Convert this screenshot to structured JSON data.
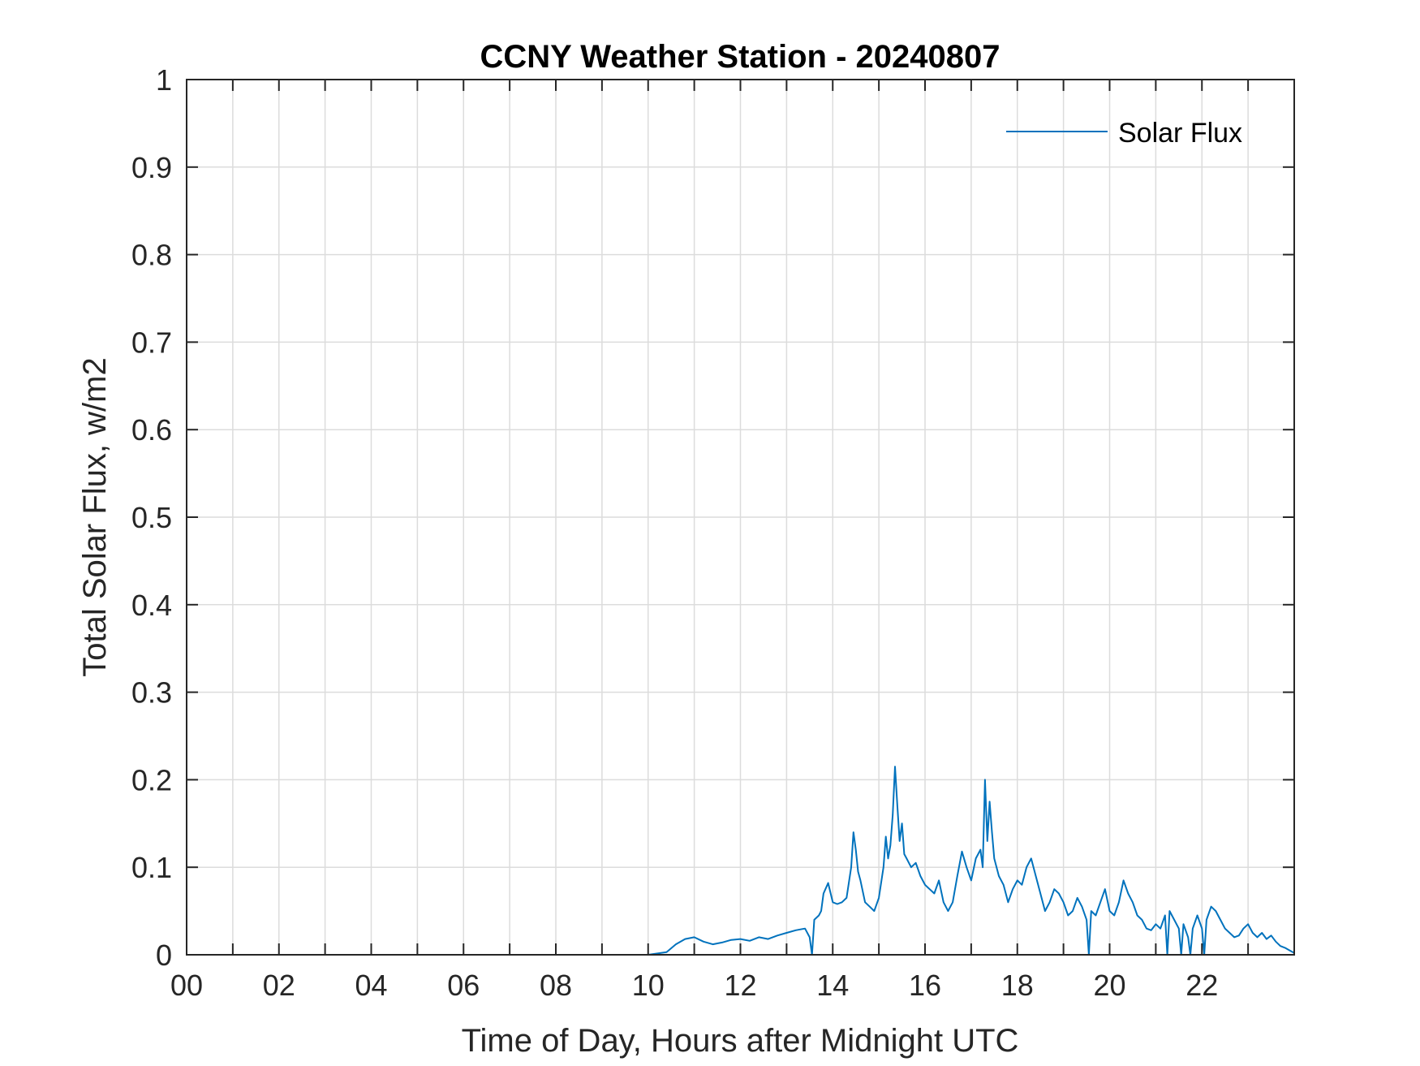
{
  "chart_data": {
    "type": "line",
    "title": "CCNY Weather Station - 20240807",
    "xlabel": "Time of Day, Hours after Midnight UTC",
    "ylabel": "Total Solar Flux, w/m2",
    "xlim": [
      0,
      24
    ],
    "ylim": [
      0,
      1
    ],
    "xticks": [
      0,
      2,
      4,
      6,
      8,
      10,
      12,
      14,
      16,
      18,
      20,
      22
    ],
    "xtick_labels": [
      "00",
      "02",
      "04",
      "06",
      "08",
      "10",
      "12",
      "14",
      "16",
      "18",
      "20",
      "22"
    ],
    "yticks": [
      0,
      0.1,
      0.2,
      0.3,
      0.4,
      0.5,
      0.6,
      0.7,
      0.8,
      0.9,
      1
    ],
    "ytick_labels": [
      "0",
      "0.1",
      "0.2",
      "0.3",
      "0.4",
      "0.5",
      "0.6",
      "0.7",
      "0.8",
      "0.9",
      "1"
    ],
    "grid": true,
    "legend_position": "top-right",
    "color": "#0072BD",
    "series": [
      {
        "name": "Solar Flux",
        "x": [
          0,
          10,
          10.4,
          10.6,
          10.8,
          11.0,
          11.2,
          11.4,
          11.6,
          11.8,
          12.0,
          12.2,
          12.4,
          12.6,
          12.8,
          13.0,
          13.2,
          13.4,
          13.5,
          13.55,
          13.6,
          13.7,
          13.75,
          13.8,
          13.9,
          14.0,
          14.1,
          14.2,
          14.3,
          14.4,
          14.45,
          14.5,
          14.55,
          14.6,
          14.7,
          14.8,
          14.9,
          15.0,
          15.1,
          15.15,
          15.2,
          15.25,
          15.3,
          15.35,
          15.4,
          15.45,
          15.5,
          15.55,
          15.6,
          15.7,
          15.8,
          15.9,
          16.0,
          16.1,
          16.2,
          16.3,
          16.4,
          16.5,
          16.6,
          16.7,
          16.8,
          16.9,
          17.0,
          17.1,
          17.2,
          17.25,
          17.3,
          17.35,
          17.4,
          17.45,
          17.5,
          17.6,
          17.7,
          17.8,
          17.9,
          18.0,
          18.1,
          18.2,
          18.3,
          18.4,
          18.5,
          18.6,
          18.7,
          18.8,
          18.9,
          19.0,
          19.1,
          19.2,
          19.3,
          19.4,
          19.5,
          19.55,
          19.6,
          19.7,
          19.8,
          19.9,
          20.0,
          20.1,
          20.2,
          20.3,
          20.4,
          20.5,
          20.6,
          20.7,
          20.8,
          20.9,
          21.0,
          21.1,
          21.2,
          21.25,
          21.3,
          21.4,
          21.5,
          21.55,
          21.6,
          21.7,
          21.75,
          21.8,
          21.9,
          22.0,
          22.05,
          22.1,
          22.2,
          22.3,
          22.4,
          22.5,
          22.6,
          22.7,
          22.8,
          22.9,
          23.0,
          23.1,
          23.2,
          23.3,
          23.4,
          23.5,
          23.6,
          23.7,
          23.8,
          23.9,
          24.0
        ],
        "y": [
          0,
          0,
          0.003,
          0.012,
          0.018,
          0.02,
          0.015,
          0.012,
          0.014,
          0.017,
          0.018,
          0.016,
          0.02,
          0.018,
          0.022,
          0.025,
          0.028,
          0.03,
          0.02,
          0.0,
          0.04,
          0.045,
          0.05,
          0.07,
          0.082,
          0.06,
          0.058,
          0.06,
          0.065,
          0.1,
          0.14,
          0.12,
          0.095,
          0.085,
          0.06,
          0.055,
          0.05,
          0.065,
          0.1,
          0.135,
          0.11,
          0.125,
          0.16,
          0.215,
          0.17,
          0.13,
          0.15,
          0.115,
          0.11,
          0.1,
          0.105,
          0.09,
          0.08,
          0.075,
          0.07,
          0.085,
          0.06,
          0.05,
          0.06,
          0.09,
          0.118,
          0.1,
          0.085,
          0.11,
          0.12,
          0.1,
          0.2,
          0.13,
          0.175,
          0.14,
          0.11,
          0.09,
          0.08,
          0.06,
          0.075,
          0.085,
          0.08,
          0.1,
          0.11,
          0.09,
          0.07,
          0.05,
          0.06,
          0.075,
          0.07,
          0.06,
          0.045,
          0.05,
          0.065,
          0.055,
          0.04,
          0.0,
          0.05,
          0.045,
          0.06,
          0.075,
          0.05,
          0.045,
          0.06,
          0.085,
          0.07,
          0.06,
          0.045,
          0.04,
          0.03,
          0.028,
          0.035,
          0.03,
          0.045,
          0.0,
          0.05,
          0.04,
          0.03,
          0.0,
          0.035,
          0.02,
          0.0,
          0.03,
          0.045,
          0.03,
          0.0,
          0.04,
          0.055,
          0.05,
          0.04,
          0.03,
          0.025,
          0.02,
          0.022,
          0.03,
          0.035,
          0.025,
          0.02,
          0.025,
          0.018,
          0.022,
          0.015,
          0.01,
          0.008,
          0.005,
          0.002
        ]
      }
    ]
  }
}
